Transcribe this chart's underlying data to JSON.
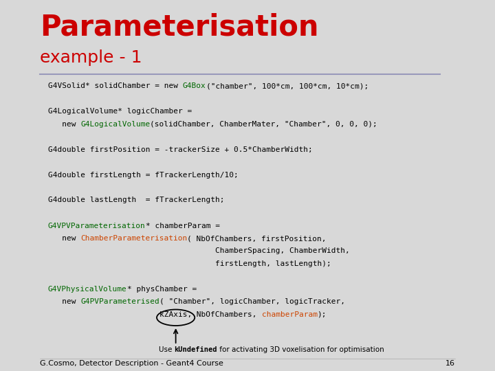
{
  "title_line1": "Parameterisation",
  "title_line2": "example - 1",
  "background_color": "#d8d8d8",
  "title_color": "#cc0000",
  "subtitle_color": "#cc0000",
  "separator_color": "#9999bb",
  "footer_text": "G.Cosmo, Detector Description - Geant4 Course",
  "page_number": "16",
  "black": "#000000",
  "green": "#006600",
  "orange": "#cc4400",
  "code_fontsize": 8.0,
  "title_fontsize": 30,
  "subtitle_fontsize": 18,
  "code_lines": [
    [
      {
        "t": "G4VSolid* solidChamber = new ",
        "c": "black"
      },
      {
        "t": "G4Box",
        "c": "green"
      },
      {
        "t": "(\"chamber\", 100*cm, 100*cm, 10*cm);",
        "c": "black"
      }
    ],
    [
      {
        "t": "",
        "c": "black"
      }
    ],
    [
      {
        "t": "G4LogicalVolume* logicChamber =",
        "c": "black"
      }
    ],
    [
      {
        "t": "   new ",
        "c": "black"
      },
      {
        "t": "G4LogicalVolume",
        "c": "green"
      },
      {
        "t": "(solidChamber, ChamberMater, \"Chamber\", 0, 0, 0);",
        "c": "black"
      }
    ],
    [
      {
        "t": "",
        "c": "black"
      }
    ],
    [
      {
        "t": "G4double firstPosition = -trackerSize + 0.5*ChamberWidth;",
        "c": "black"
      }
    ],
    [
      {
        "t": "",
        "c": "black"
      }
    ],
    [
      {
        "t": "G4double firstLength = fTrackerLength/10;",
        "c": "black"
      }
    ],
    [
      {
        "t": "",
        "c": "black"
      }
    ],
    [
      {
        "t": "G4double lastLength  = fTrackerLength;",
        "c": "black"
      }
    ],
    [
      {
        "t": "",
        "c": "black"
      }
    ],
    [
      {
        "t": "G4VPVParameterisation",
        "c": "green"
      },
      {
        "t": "* chamberParam =",
        "c": "black"
      }
    ],
    [
      {
        "t": "   new ",
        "c": "black"
      },
      {
        "t": "ChamberParameterisation",
        "c": "orange"
      },
      {
        "t": "( NbOfChambers, firstPosition,",
        "c": "black"
      }
    ],
    [
      {
        "t": "                                    ChamberSpacing, ChamberWidth,",
        "c": "black"
      }
    ],
    [
      {
        "t": "                                    firstLength, lastLength);",
        "c": "black"
      }
    ],
    [
      {
        "t": "",
        "c": "black"
      }
    ],
    [
      {
        "t": "G4VPhysicalVolume",
        "c": "green"
      },
      {
        "t": "* physChamber =",
        "c": "black"
      }
    ],
    [
      {
        "t": "   new ",
        "c": "black"
      },
      {
        "t": "G4PVParameterised",
        "c": "green"
      },
      {
        "t": "( \"Chamber\", logicChamber, logicTracker,",
        "c": "black"
      }
    ],
    [
      {
        "t": "                        kZAxis,",
        "c": "black",
        "ellipse": true
      },
      {
        "t": " NbOfChambers, ",
        "c": "black"
      },
      {
        "t": "chamberParam",
        "c": "orange"
      },
      {
        "t": ");",
        "c": "black"
      }
    ]
  ]
}
